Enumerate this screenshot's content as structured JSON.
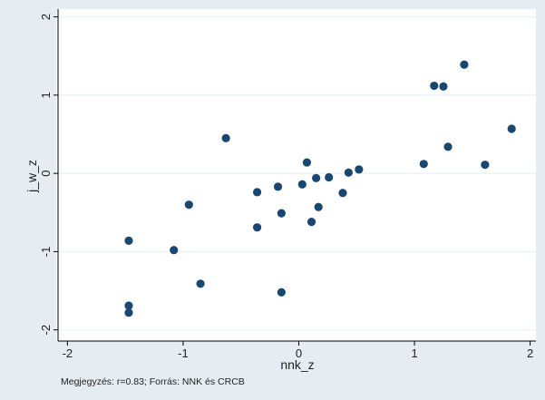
{
  "chart_data": {
    "type": "scatter",
    "xlabel": "nnk_z",
    "ylabel": "j_w_z",
    "note": "Megjegyzés: r=0.83; Forrás: NNK és CRCB",
    "xlim": [
      -2.05,
      2.05
    ],
    "ylim": [
      -2.05,
      2.1
    ],
    "xticks": [
      -2,
      -1,
      0,
      1,
      2
    ],
    "xtick_labels": [
      "-2",
      "-1",
      "0",
      "1",
      "2"
    ],
    "yticks": [
      -2,
      -1,
      0,
      1,
      2
    ],
    "ytick_labels": [
      "-2",
      "-1",
      "0",
      "1",
      "2"
    ],
    "grid": "horizontal",
    "marker_color": "#1a476f",
    "x": [
      -1.47,
      -1.47,
      -1.47,
      -1.08,
      -0.95,
      -0.85,
      -0.63,
      -0.36,
      -0.36,
      -0.18,
      -0.15,
      -0.15,
      0.03,
      0.07,
      0.11,
      0.15,
      0.17,
      0.26,
      0.38,
      0.43,
      0.52,
      1.08,
      1.17,
      1.25,
      1.29,
      1.43,
      1.61,
      1.84
    ],
    "y": [
      -0.86,
      -1.69,
      -1.78,
      -0.98,
      -0.4,
      -1.41,
      0.45,
      -0.24,
      -0.69,
      -0.17,
      -0.51,
      -1.52,
      -0.14,
      0.14,
      -0.62,
      -0.06,
      -0.43,
      -0.05,
      -0.25,
      0.01,
      0.05,
      0.12,
      1.12,
      1.11,
      0.34,
      1.39,
      0.11,
      0.57
    ]
  }
}
